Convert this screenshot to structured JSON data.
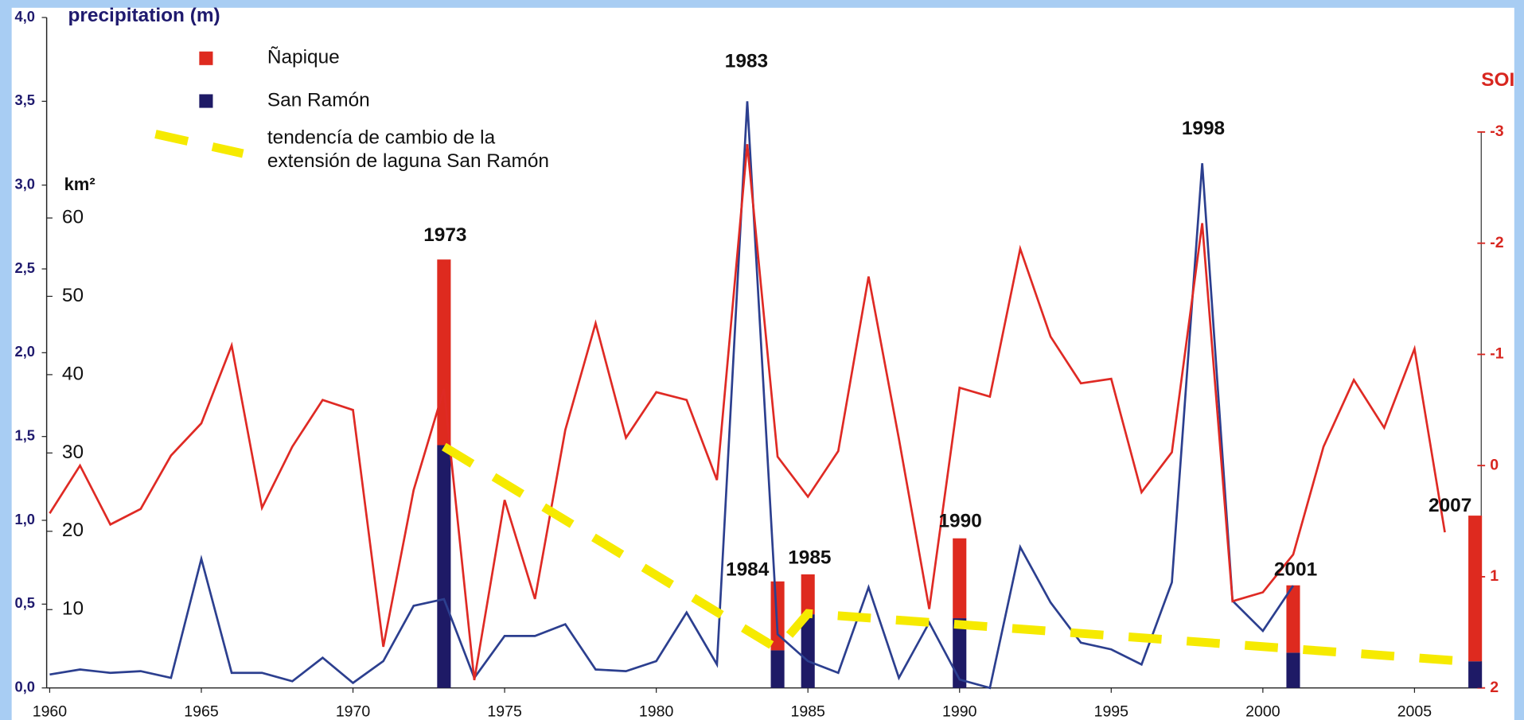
{
  "chart_data": {
    "type": "bar",
    "y_label": "precipitation (m)",
    "y3_label": "km²",
    "y2_label": "SOI",
    "annotations": [
      "1973",
      "1983",
      "1984",
      "1985",
      "1990",
      "1998",
      "2001",
      "2007"
    ],
    "xlim": [
      1959.9,
      2007.2
    ],
    "xticks": [
      1960,
      1965,
      1970,
      1975,
      1980,
      1985,
      1990,
      1995,
      2000,
      2005
    ],
    "ylim": [
      0,
      4
    ],
    "yticks": [
      {
        "value": 0,
        "label": "0,0"
      },
      {
        "value": 0.5,
        "label": "0,5"
      },
      {
        "value": 1,
        "label": "1,0"
      },
      {
        "value": 1.5,
        "label": "1,5"
      },
      {
        "value": 2,
        "label": "2,0"
      },
      {
        "value": 2.5,
        "label": "2,5"
      },
      {
        "value": 3,
        "label": "3,0"
      },
      {
        "value": 3.5,
        "label": "3,5"
      },
      {
        "value": 4,
        "label": "4,0"
      }
    ],
    "y2lim": [
      2,
      -4.03
    ],
    "y2ticks": [
      2,
      1,
      0,
      -1,
      -2,
      -3
    ],
    "y3lim": [
      0,
      85.6
    ],
    "y3ticks": [
      10,
      20,
      30,
      40,
      50,
      60
    ],
    "series": [
      {
        "name": "San Ramón",
        "type": "bar",
        "color": "#1e1a66",
        "axis": "y3",
        "x": [
          1973,
          1984,
          1985,
          1990,
          2001,
          2007
        ],
        "values": [
          31,
          4.8,
          9.4,
          8.9,
          4.5,
          3.4
        ]
      },
      {
        "name": "Ñapique",
        "type": "bar",
        "color": "#de2a1f",
        "axis": "y3",
        "stacked": true,
        "x": [
          1973,
          1984,
          1985,
          1990,
          2001,
          2007
        ],
        "values": [
          23.7,
          8.8,
          5.1,
          10.2,
          8.6,
          18.6
        ]
      },
      {
        "name": "tendencía de cambio de la extensión de laguna San Ramón",
        "type": "line",
        "dashed": true,
        "color": "#f6ea00",
        "axis": "y3",
        "x": [
          1973,
          1984,
          1985,
          2007
        ],
        "values": [
          30.8,
          5.0,
          9.5,
          3.3
        ]
      },
      {
        "type": "line",
        "color": "#2c3f8f",
        "axis": "y",
        "x": [
          1960,
          1961,
          1962,
          1963,
          1964,
          1965,
          1966,
          1967,
          1968,
          1969,
          1970,
          1971,
          1972,
          1973,
          1974,
          1975,
          1976,
          1977,
          1978,
          1979,
          1980,
          1981,
          1982,
          1983,
          1984,
          1985,
          1986,
          1987,
          1988,
          1989,
          1990,
          1991,
          1992,
          1993,
          1994,
          1995,
          1996,
          1997,
          1998,
          1999,
          2000,
          2001
        ],
        "values": [
          0.08,
          0.11,
          0.09,
          0.1,
          0.06,
          0.77,
          0.09,
          0.09,
          0.04,
          0.18,
          0.03,
          0.16,
          0.49,
          0.53,
          0.06,
          0.31,
          0.31,
          0.38,
          0.11,
          0.1,
          0.16,
          0.45,
          0.14,
          3.5,
          0.32,
          0.16,
          0.09,
          0.6,
          0.06,
          0.39,
          0.05,
          0.0,
          0.84,
          0.51,
          0.27,
          0.23,
          0.14,
          0.63,
          3.13,
          0.52,
          0.34,
          0.61
        ]
      },
      {
        "type": "line",
        "color": "#df2a24",
        "axis": "y2",
        "x": [
          1960,
          1961,
          1962,
          1963,
          1964,
          1965,
          1966,
          1967,
          1968,
          1969,
          1970,
          1971,
          1972,
          1973,
          1974,
          1975,
          1976,
          1977,
          1978,
          1979,
          1980,
          1981,
          1982,
          1983,
          1984,
          1985,
          1986,
          1987,
          1988,
          1989,
          1990,
          1991,
          1992,
          1993,
          1994,
          1995,
          1996,
          1997,
          1998,
          1999,
          2000,
          2001,
          2002,
          2003,
          2004,
          2005,
          2006
        ],
        "values": [
          0.43,
          0.0,
          0.53,
          0.39,
          -0.09,
          -0.38,
          -1.08,
          0.38,
          -0.17,
          -0.59,
          -0.5,
          1.63,
          0.22,
          -0.69,
          1.93,
          0.31,
          1.2,
          -0.32,
          -1.28,
          -0.25,
          -0.66,
          -0.59,
          0.13,
          -2.89,
          -0.08,
          0.28,
          -0.13,
          -1.7,
          -0.24,
          1.29,
          -0.7,
          -0.62,
          -1.95,
          -1.16,
          -0.74,
          -0.78,
          0.24,
          -0.12,
          -2.18,
          1.22,
          1.14,
          0.8,
          -0.17,
          -0.77,
          -0.34,
          -1.05,
          0.6
        ]
      }
    ]
  }
}
